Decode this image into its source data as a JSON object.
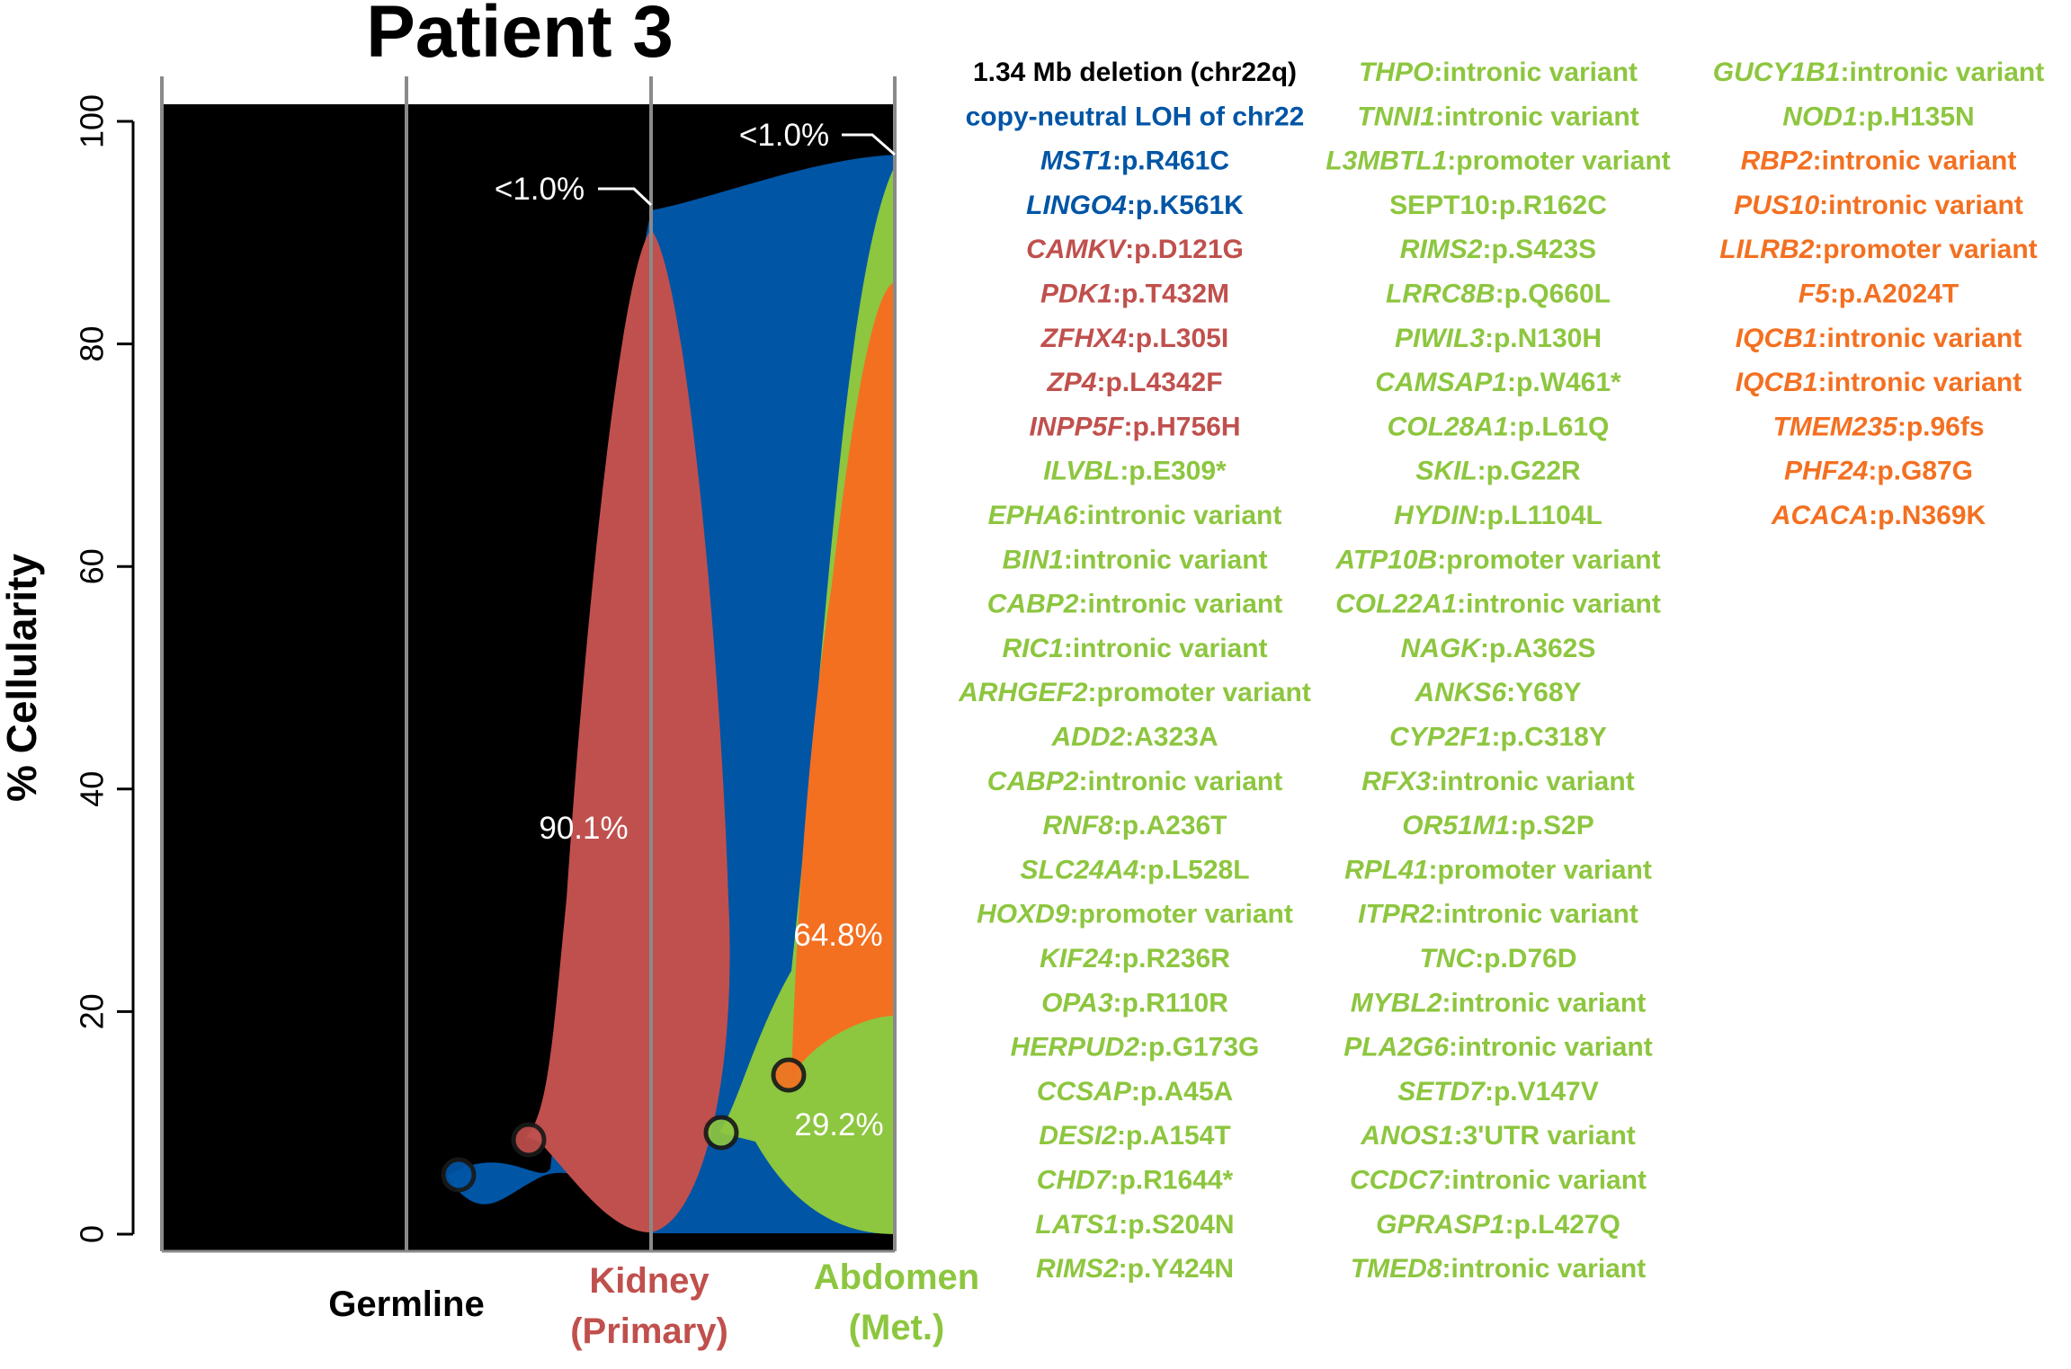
{
  "chart_data": {
    "type": "area",
    "title": "Patient 3",
    "ylabel": "% Cellularity",
    "ylim": [
      0,
      100
    ],
    "yticks": [
      "0",
      "20",
      "40",
      "60",
      "80",
      "100"
    ],
    "samples": [
      {
        "label": "Germline",
        "color": "#000000"
      },
      {
        "label": "Kidney\n(Primary)",
        "color": "#c0504d"
      },
      {
        "label": "Abdomen\n(Met.)",
        "color": "#8dc63f"
      }
    ],
    "clones": [
      {
        "name": "blue",
        "color": "#0055a5",
        "cellularity": {
          "Germline": 0,
          "Kidney": 92,
          "Abdomen": 97
        }
      },
      {
        "name": "red",
        "color": "#c0504d",
        "cellularity": {
          "Germline": 0,
          "Kidney": 90.1,
          "Abdomen": 0
        }
      },
      {
        "name": "green",
        "color": "#8dc63f",
        "cellularity": {
          "Germline": 0,
          "Kidney": 0,
          "Abdomen": 96
        }
      },
      {
        "name": "orange",
        "color": "#f37021",
        "cellularity": {
          "Germline": 0,
          "Kidney": 0,
          "Abdomen": 64.8
        }
      }
    ],
    "annotations": [
      "<1.0%",
      "<1.0%",
      "90.1%",
      "64.8%",
      "29.2%"
    ]
  },
  "mutation_columns": [
    [
      {
        "gene": "",
        "text": "1.34 Mb deletion (chr22q)",
        "color": "#000000"
      },
      {
        "gene": "",
        "text": "copy-neutral LOH of chr22",
        "color": "#0055a5"
      },
      {
        "gene": "MST1",
        "text": ":p.R461C",
        "color": "#0055a5"
      },
      {
        "gene": "LINGO4",
        "text": ":p.K561K",
        "color": "#0055a5"
      },
      {
        "gene": "CAMKV",
        "text": ":p.D121G",
        "color": "#c0504d"
      },
      {
        "gene": "PDK1",
        "text": ":p.T432M",
        "color": "#c0504d"
      },
      {
        "gene": "ZFHX4",
        "text": ":p.L305I",
        "color": "#c0504d"
      },
      {
        "gene": "ZP4",
        "text": ":p.L4342F",
        "color": "#c0504d"
      },
      {
        "gene": "INPP5F",
        "text": ":p.H756H",
        "color": "#c0504d"
      },
      {
        "gene": "ILVBL",
        "text": ":p.E309*",
        "color": "#8dc63f"
      },
      {
        "gene": "EPHA6",
        "text": ":intronic variant",
        "color": "#8dc63f"
      },
      {
        "gene": "BIN1",
        "text": ":intronic variant",
        "color": "#8dc63f"
      },
      {
        "gene": "CABP2",
        "text": ":intronic variant",
        "color": "#8dc63f"
      },
      {
        "gene": "RIC1",
        "text": ":intronic variant",
        "color": "#8dc63f"
      },
      {
        "gene": "ARHGEF2",
        "text": ":promoter variant",
        "color": "#8dc63f"
      },
      {
        "gene": "ADD2",
        "text": ":A323A",
        "color": "#8dc63f"
      },
      {
        "gene": "CABP2",
        "text": ":intronic variant",
        "color": "#8dc63f"
      },
      {
        "gene": "RNF8",
        "text": ":p.A236T",
        "color": "#8dc63f"
      },
      {
        "gene": "SLC24A4",
        "text": ":p.L528L",
        "color": "#8dc63f"
      },
      {
        "gene": "HOXD9",
        "text": ":promoter variant",
        "color": "#8dc63f"
      },
      {
        "gene": "KIF24",
        "text": ":p.R236R",
        "color": "#8dc63f"
      },
      {
        "gene": "OPA3",
        "text": ":p.R110R",
        "color": "#8dc63f"
      },
      {
        "gene": "HERPUD2",
        "text": ":p.G173G",
        "color": "#8dc63f"
      },
      {
        "gene": "CCSAP",
        "text": ":p.A45A",
        "color": "#8dc63f"
      },
      {
        "gene": "DESI2",
        "text": ":p.A154T",
        "color": "#8dc63f"
      },
      {
        "gene": "CHD7",
        "text": ":p.R1644*",
        "color": "#8dc63f"
      },
      {
        "gene": "LATS1",
        "text": ":p.S204N",
        "color": "#8dc63f"
      },
      {
        "gene": "RIMS2",
        "text": ":p.Y424N",
        "color": "#8dc63f"
      }
    ],
    [
      {
        "gene": "THPO",
        "text": ":intronic variant",
        "color": "#8dc63f"
      },
      {
        "gene": "TNNI1",
        "text": ":intronic variant",
        "color": "#8dc63f"
      },
      {
        "gene": "L3MBTL1",
        "text": ":promoter variant",
        "color": "#8dc63f"
      },
      {
        "gene": "",
        "text": "SEPT10:p.R162C",
        "color": "#8dc63f"
      },
      {
        "gene": "RIMS2",
        "text": ":p.S423S",
        "color": "#8dc63f"
      },
      {
        "gene": "LRRC8B",
        "text": ":p.Q660L",
        "color": "#8dc63f"
      },
      {
        "gene": "PIWIL3",
        "text": ":p.N130H",
        "color": "#8dc63f"
      },
      {
        "gene": "CAMSAP1",
        "text": ":p.W461*",
        "color": "#8dc63f"
      },
      {
        "gene": "COL28A1",
        "text": ":p.L61Q",
        "color": "#8dc63f"
      },
      {
        "gene": "SKIL",
        "text": ":p.G22R",
        "color": "#8dc63f"
      },
      {
        "gene": "HYDIN",
        "text": ":p.L1104L",
        "color": "#8dc63f"
      },
      {
        "gene": "ATP10B",
        "text": ":promoter variant",
        "color": "#8dc63f"
      },
      {
        "gene": "COL22A1",
        "text": ":intronic variant",
        "color": "#8dc63f"
      },
      {
        "gene": "NAGK",
        "text": ":p.A362S",
        "color": "#8dc63f"
      },
      {
        "gene": "ANKS6",
        "text": ":Y68Y",
        "color": "#8dc63f"
      },
      {
        "gene": "CYP2F1",
        "text": ":p.C318Y",
        "color": "#8dc63f"
      },
      {
        "gene": "RFX3",
        "text": ":intronic variant",
        "color": "#8dc63f"
      },
      {
        "gene": "OR51M1",
        "text": ":p.S2P",
        "color": "#8dc63f"
      },
      {
        "gene": "RPL41",
        "text": ":promoter variant",
        "color": "#8dc63f"
      },
      {
        "gene": "ITPR2",
        "text": ":intronic variant",
        "color": "#8dc63f"
      },
      {
        "gene": "TNC",
        "text": ":p.D76D",
        "color": "#8dc63f"
      },
      {
        "gene": "MYBL2",
        "text": ":intronic variant",
        "color": "#8dc63f"
      },
      {
        "gene": "PLA2G6",
        "text": ":intronic variant",
        "color": "#8dc63f"
      },
      {
        "gene": "SETD7",
        "text": ":p.V147V",
        "color": "#8dc63f"
      },
      {
        "gene": "ANOS1",
        "text": ":3'UTR variant",
        "color": "#8dc63f"
      },
      {
        "gene": "CCDC7",
        "text": ":intronic variant",
        "color": "#8dc63f"
      },
      {
        "gene": "GPRASP1",
        "text": ":p.L427Q",
        "color": "#8dc63f"
      },
      {
        "gene": "TMED8",
        "text": ":intronic variant",
        "color": "#8dc63f"
      }
    ],
    [
      {
        "gene": "GUCY1B1",
        "text": ":intronic variant",
        "color": "#8dc63f"
      },
      {
        "gene": "NOD1",
        "text": ":p.H135N",
        "color": "#8dc63f"
      },
      {
        "gene": "RBP2",
        "text": ":intronic variant",
        "color": "#f37021"
      },
      {
        "gene": "PUS10",
        "text": ":intronic variant",
        "color": "#f37021"
      },
      {
        "gene": "LILRB2",
        "text": ":promoter variant",
        "color": "#f37021"
      },
      {
        "gene": "F5",
        "text": ":p.A2024T",
        "color": "#f37021"
      },
      {
        "gene": "IQCB1",
        "text": ":intronic variant",
        "color": "#f37021"
      },
      {
        "gene": "IQCB1",
        "text": ":intronic variant",
        "color": "#f37021"
      },
      {
        "gene": "TMEM235",
        "text": ":p.96fs",
        "color": "#f37021"
      },
      {
        "gene": "PHF24",
        "text": ":p.G87G",
        "color": "#f37021"
      },
      {
        "gene": "ACACA",
        "text": ":p.N369K",
        "color": "#f37021"
      }
    ]
  ]
}
